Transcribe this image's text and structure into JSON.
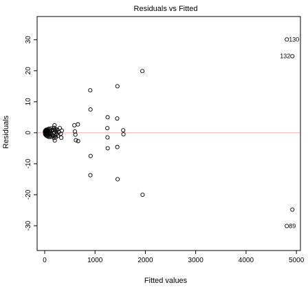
{
  "chart_data": {
    "type": "scatter",
    "title": "Residuals vs Fitted",
    "xlabel": "Fitted values",
    "ylabel": "Residuals",
    "xlim": [
      -150,
      5080
    ],
    "ylim": [
      -38,
      37.5
    ],
    "xticks": [
      0,
      1000,
      2000,
      3000,
      4000,
      5000
    ],
    "yticks": [
      -30,
      -20,
      -10,
      0,
      10,
      20,
      30
    ],
    "reference_line": {
      "y": 0,
      "color": "#f4a6a6"
    },
    "points": [
      {
        "x": 5,
        "y": 0.3
      },
      {
        "x": 8,
        "y": -0.4
      },
      {
        "x": 10,
        "y": 0.6
      },
      {
        "x": 12,
        "y": -0.2
      },
      {
        "x": 15,
        "y": 0.1
      },
      {
        "x": 18,
        "y": -0.7
      },
      {
        "x": 20,
        "y": 0.8
      },
      {
        "x": 22,
        "y": -0.5
      },
      {
        "x": 25,
        "y": 0.2
      },
      {
        "x": 28,
        "y": -0.1
      },
      {
        "x": 30,
        "y": 0.5
      },
      {
        "x": 33,
        "y": -0.8
      },
      {
        "x": 35,
        "y": 1.0
      },
      {
        "x": 38,
        "y": -1.0
      },
      {
        "x": 40,
        "y": 0.0
      },
      {
        "x": 45,
        "y": 0.9
      },
      {
        "x": 48,
        "y": -0.6
      },
      {
        "x": 50,
        "y": 0.4
      },
      {
        "x": 55,
        "y": -0.3
      },
      {
        "x": 60,
        "y": 1.1
      },
      {
        "x": 62,
        "y": -1.2
      },
      {
        "x": 65,
        "y": 0.2
      },
      {
        "x": 70,
        "y": 0.7
      },
      {
        "x": 75,
        "y": -0.9
      },
      {
        "x": 80,
        "y": 0.0
      },
      {
        "x": 85,
        "y": 1.3
      },
      {
        "x": 90,
        "y": -1.4
      },
      {
        "x": 95,
        "y": 0.5
      },
      {
        "x": 100,
        "y": -0.5
      },
      {
        "x": 105,
        "y": 1.0
      },
      {
        "x": 110,
        "y": -1.0
      },
      {
        "x": 115,
        "y": 0.3
      },
      {
        "x": 120,
        "y": -0.2
      },
      {
        "x": 130,
        "y": 1.4
      },
      {
        "x": 135,
        "y": -1.3
      },
      {
        "x": 140,
        "y": 0.6
      },
      {
        "x": 150,
        "y": -0.7
      },
      {
        "x": 160,
        "y": 0.9
      },
      {
        "x": 170,
        "y": -1.1
      },
      {
        "x": 180,
        "y": 1.6
      },
      {
        "x": 185,
        "y": -1.7
      },
      {
        "x": 190,
        "y": 0.1
      },
      {
        "x": 195,
        "y": 2.4
      },
      {
        "x": 200,
        "y": -2.5
      },
      {
        "x": 205,
        "y": 0.8
      },
      {
        "x": 210,
        "y": -0.9
      },
      {
        "x": 215,
        "y": 1.2
      },
      {
        "x": 220,
        "y": -1.5
      },
      {
        "x": 230,
        "y": 0.4
      },
      {
        "x": 240,
        "y": -0.4
      },
      {
        "x": 250,
        "y": 1.0
      },
      {
        "x": 260,
        "y": -1.0
      },
      {
        "x": 280,
        "y": 0.2
      },
      {
        "x": 300,
        "y": 1.5
      },
      {
        "x": 320,
        "y": -0.3
      },
      {
        "x": 330,
        "y": -1.6
      },
      {
        "x": 340,
        "y": 0.7
      },
      {
        "x": 590,
        "y": 2.4
      },
      {
        "x": 600,
        "y": 0.4
      },
      {
        "x": 610,
        "y": -0.6
      },
      {
        "x": 620,
        "y": -2.4
      },
      {
        "x": 660,
        "y": 2.7
      },
      {
        "x": 665,
        "y": -2.7
      },
      {
        "x": 905,
        "y": 13.7
      },
      {
        "x": 910,
        "y": 7.5
      },
      {
        "x": 912,
        "y": -7.5
      },
      {
        "x": 908,
        "y": -13.7
      },
      {
        "x": 1250,
        "y": 5.0
      },
      {
        "x": 1245,
        "y": 1.5
      },
      {
        "x": 1248,
        "y": -1.5
      },
      {
        "x": 1252,
        "y": -5.0
      },
      {
        "x": 1445,
        "y": 15.0
      },
      {
        "x": 1440,
        "y": 4.6
      },
      {
        "x": 1442,
        "y": -4.6
      },
      {
        "x": 1448,
        "y": -15.0
      },
      {
        "x": 1560,
        "y": 0.8
      },
      {
        "x": 1565,
        "y": -0.5
      },
      {
        "x": 1940,
        "y": 19.9
      },
      {
        "x": 1945,
        "y": -20.0
      },
      {
        "x": 4810,
        "y": 30.1
      },
      {
        "x": 4920,
        "y": 24.7
      },
      {
        "x": 4920,
        "y": -24.8
      },
      {
        "x": 4810,
        "y": -30.1
      }
    ],
    "annotations": [
      {
        "label": "130",
        "x": 4810,
        "y": 30.1,
        "side": "right"
      },
      {
        "label": "132",
        "x": 4920,
        "y": 24.7,
        "side": "left"
      },
      {
        "label": "89",
        "x": 4810,
        "y": -30.1,
        "side": "right"
      }
    ],
    "grid": false,
    "legend": "none"
  }
}
